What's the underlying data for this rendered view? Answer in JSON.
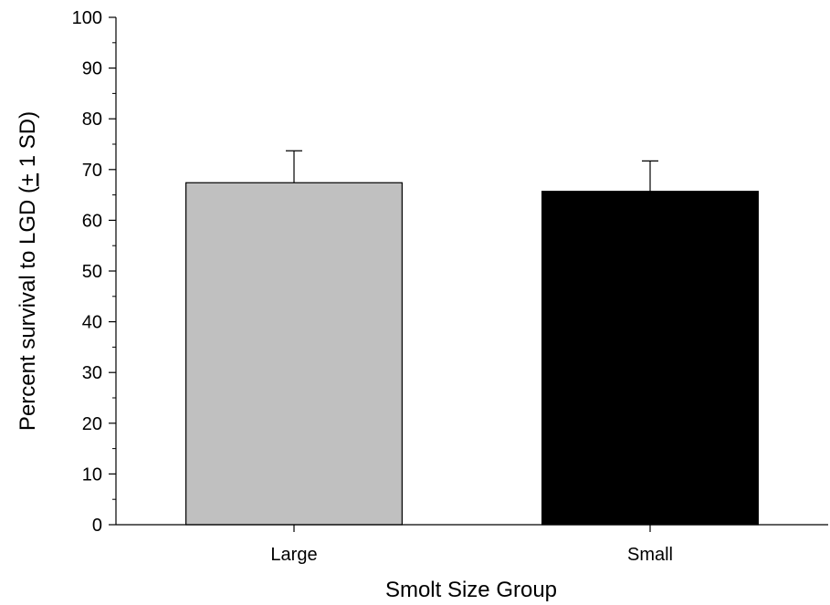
{
  "chart_data": {
    "type": "bar",
    "title": "",
    "categories": [
      "Large",
      "Small"
    ],
    "values": [
      67.4,
      65.7
    ],
    "error_sd": [
      6.3,
      6.0
    ],
    "bar_colors": [
      "#c0c0c0",
      "#000000"
    ],
    "xlabel": "Smolt Size Group",
    "ylabel": {
      "prefix": "Percent survival to LGD (",
      "pm_symbol": "+",
      "suffix": " 1 SD)"
    },
    "ylim": [
      0,
      100
    ],
    "yticks": [
      0,
      10,
      20,
      30,
      40,
      50,
      60,
      70,
      80,
      90,
      100
    ],
    "grid": false,
    "legend": "none"
  }
}
